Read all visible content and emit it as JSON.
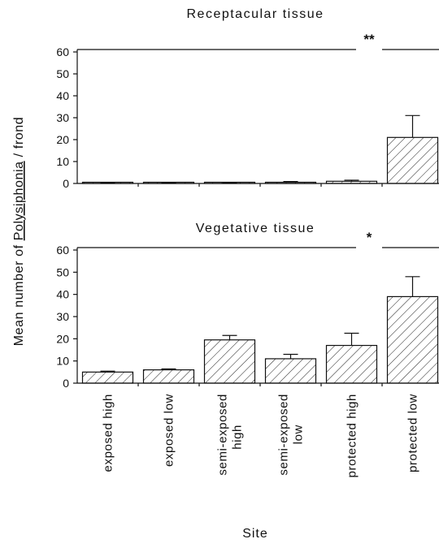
{
  "chart_data": {
    "type": "bar",
    "ylabel": "Mean number of Polysiphonia / frond",
    "ylabel_underlined": "Polysiphonia",
    "xlabel": "Site",
    "categories": [
      [
        "exposed",
        "high"
      ],
      [
        "exposed",
        "low"
      ],
      [
        "semi-exposed",
        "high"
      ],
      [
        "semi-exposed",
        "low"
      ],
      [
        "protected",
        "high"
      ],
      [
        "protected",
        "low"
      ]
    ],
    "bar_fill": "diagonal-hatch",
    "panels": [
      {
        "title": "Receptacular tissue",
        "significance": "**",
        "ylim": [
          0,
          60
        ],
        "yticks": [
          0,
          10,
          20,
          30,
          40,
          50,
          60
        ],
        "values": [
          0.3,
          0.3,
          0.3,
          0.5,
          1.0,
          21
        ],
        "errors": [
          0.1,
          0.1,
          0.1,
          0.4,
          0.5,
          10
        ]
      },
      {
        "title": "Vegetative tissue",
        "significance": "*",
        "ylim": [
          0,
          60
        ],
        "yticks": [
          0,
          10,
          20,
          30,
          40,
          50,
          60
        ],
        "values": [
          5,
          6,
          19.5,
          11,
          17,
          39
        ],
        "errors": [
          0.4,
          0.4,
          2,
          2,
          5.5,
          9
        ]
      }
    ]
  }
}
